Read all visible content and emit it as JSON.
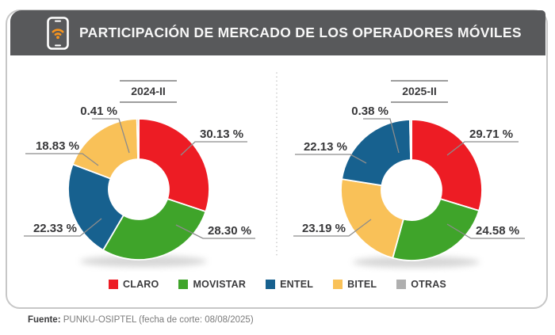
{
  "header": {
    "title": "PARTICIPACIÓN DE MERCADO DE LOS OPERADORES MÓVILES",
    "icon": "mobile-phone-wifi-icon",
    "background_color": "#58595b",
    "icon_accent_color": "#f7941d"
  },
  "colors": {
    "CLARO": "#ed1c24",
    "MOVISTAR": "#3fa42a",
    "ENTEL": "#17618f",
    "BITEL": "#f9c158",
    "OTRAS": "#afafaf"
  },
  "chart_data": [
    {
      "type": "donut",
      "title": "2024-II",
      "unit": "%",
      "start_angle_deg": 0,
      "direction": "clockwise",
      "segments": [
        {
          "operator": "CLARO",
          "value": 30.13,
          "label": "30.13 %"
        },
        {
          "operator": "MOVISTAR",
          "value": 28.3,
          "label": "28.30 %"
        },
        {
          "operator": "ENTEL",
          "value": 22.33,
          "label": "22.33 %"
        },
        {
          "operator": "BITEL",
          "value": 18.83,
          "label": "18.83 %"
        },
        {
          "operator": "OTRAS",
          "value": 0.41,
          "label": "0.41 %"
        }
      ]
    },
    {
      "type": "donut",
      "title": "2025-II",
      "unit": "%",
      "start_angle_deg": 0,
      "direction": "clockwise",
      "segments": [
        {
          "operator": "CLARO",
          "value": 29.71,
          "label": "29.71 %"
        },
        {
          "operator": "MOVISTAR",
          "value": 24.58,
          "label": "24.58 %"
        },
        {
          "operator": "BITEL",
          "value": 23.19,
          "label": "23.19 %"
        },
        {
          "operator": "ENTEL",
          "value": 22.13,
          "label": "22.13 %"
        },
        {
          "operator": "OTRAS",
          "value": 0.38,
          "label": "0.38 %"
        }
      ]
    }
  ],
  "legend": {
    "items": [
      {
        "label": "CLARO"
      },
      {
        "label": "MOVISTAR"
      },
      {
        "label": "ENTEL"
      },
      {
        "label": "BITEL"
      },
      {
        "label": "OTRAS"
      }
    ]
  },
  "footer": {
    "label": "Fuente:",
    "text": "PUNKU-OSIPTEL (fecha de corte: 08/08/2025)"
  }
}
